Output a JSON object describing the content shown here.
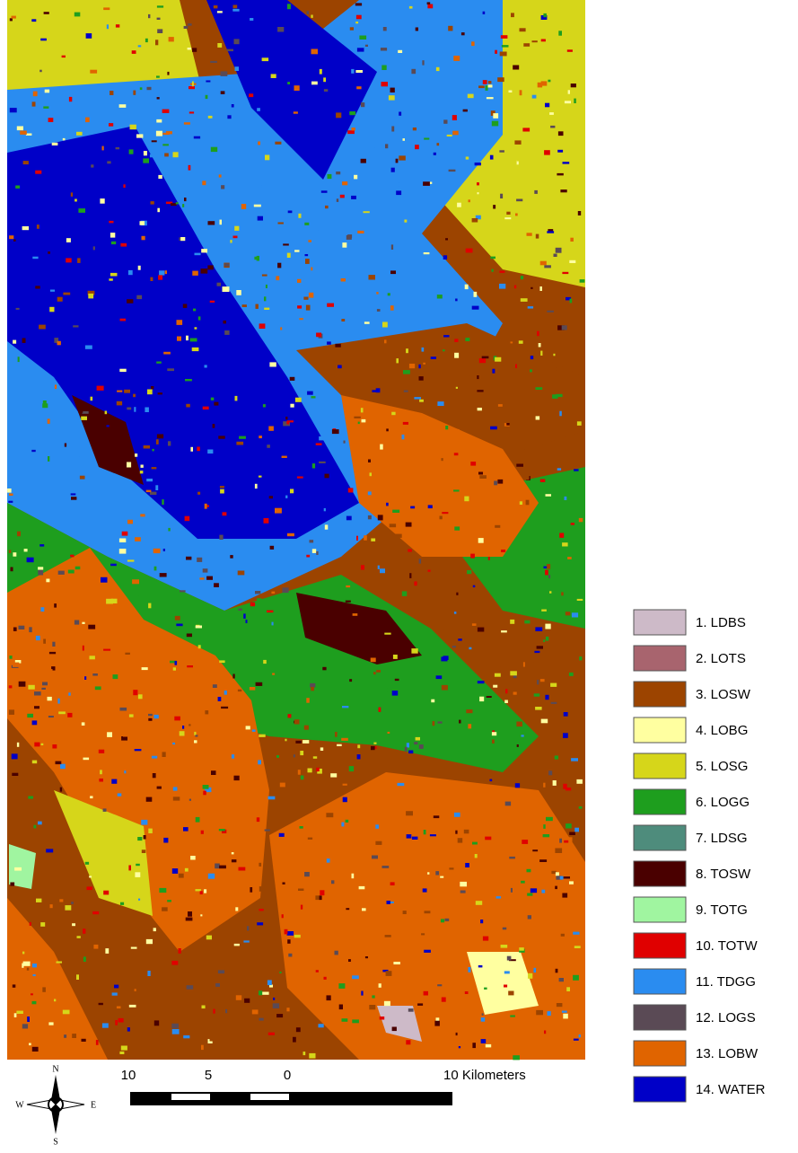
{
  "map": {
    "legend": [
      {
        "label": "1. LDBS",
        "color": "#cdbac8"
      },
      {
        "label": "2. LOTS",
        "color": "#a8646e"
      },
      {
        "label": "3. LOSW",
        "color": "#9c4400"
      },
      {
        "label": "4. LOBG",
        "color": "#ffffa0"
      },
      {
        "label": "5. LOSG",
        "color": "#d6d61a"
      },
      {
        "label": "6. LOGG",
        "color": "#1e9e1e"
      },
      {
        "label": "7. LDSG",
        "color": "#4e8c7c"
      },
      {
        "label": "8. TOSW",
        "color": "#4a0000"
      },
      {
        "label": "9. TOTG",
        "color": "#a0f5a0"
      },
      {
        "label": "10. TOTW",
        "color": "#e00000"
      },
      {
        "label": "11. TDGG",
        "color": "#2a8cf0"
      },
      {
        "label": "12. LOGS",
        "color": "#5a4a55"
      },
      {
        "label": "13. LOBW",
        "color": "#e06400"
      },
      {
        "label": "14. WATER",
        "color": "#0000c8"
      }
    ],
    "scale_bar": {
      "labels": [
        "10",
        "5",
        "0",
        "10 Kilometers"
      ]
    },
    "compass": {
      "n": "N",
      "s": "S",
      "e": "E",
      "w": "W"
    }
  }
}
